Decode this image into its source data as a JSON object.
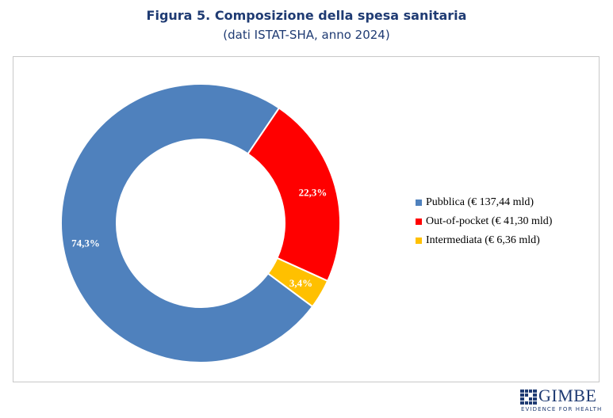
{
  "title": "Figura 5. Composizione della spesa sanitaria",
  "subtitle": "(dati ISTAT-SHA, anno 2024)",
  "chart_data": {
    "type": "pie",
    "donut": true,
    "slices": [
      {
        "name": "Pubblica (€ 137,44 mld)",
        "value": 74.3,
        "label": "74,3%",
        "color": "#4f81bd"
      },
      {
        "name": "Out-of-pocket (€ 41,30 mld)",
        "value": 22.3,
        "label": "22,3%",
        "color": "#ff0000"
      },
      {
        "name": "Intermediata (€ 6,36 mld)",
        "value": 3.4,
        "label": "3,4%",
        "color": "#ffc000"
      }
    ],
    "legend_position": "right"
  },
  "logo": {
    "name": "GIMBE",
    "tagline": "EVIDENCE FOR HEALTH",
    "color": "#1f3b73"
  }
}
